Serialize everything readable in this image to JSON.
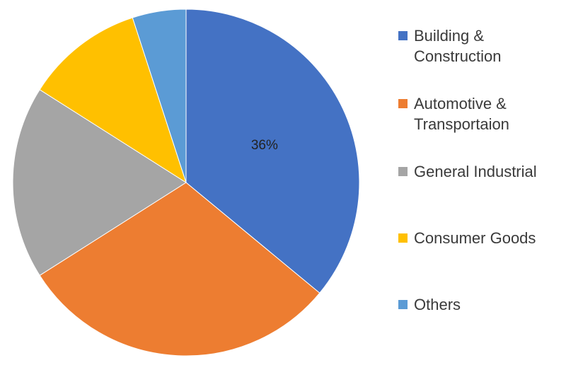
{
  "chart_data": {
    "type": "pie",
    "categories": [
      "Building &\nConstruction",
      "Automotive &\nTransportaion",
      "General Industrial",
      "Consumer Goods",
      "Others"
    ],
    "values": [
      36,
      30,
      18,
      11,
      5
    ],
    "colors": [
      "#4472C4",
      "#ED7D31",
      "#A5A5A5",
      "#FFC000",
      "#5B9BD5"
    ],
    "data_labels": [
      "36%",
      "",
      "",
      "",
      ""
    ],
    "legend_position": "right"
  }
}
